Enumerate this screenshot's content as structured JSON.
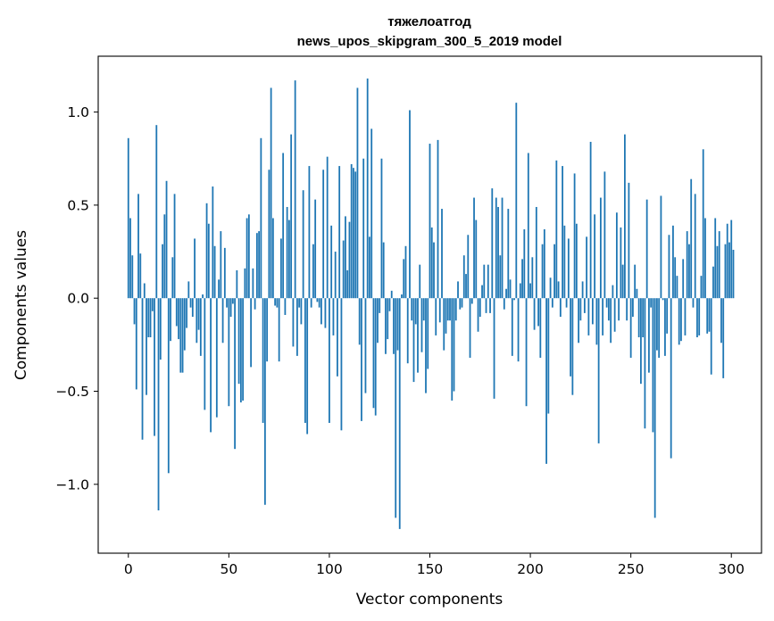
{
  "chart_data": {
    "type": "bar",
    "title_line1": "тяжелоатгод",
    "title_line2": "news_upos_skipgram_300_5_2019 model",
    "xlabel": "Vector components",
    "ylabel": "Components values",
    "xlim": [
      -15,
      315
    ],
    "ylim": [
      -1.37,
      1.3
    ],
    "x_ticks": [
      0,
      50,
      100,
      150,
      200,
      250,
      300
    ],
    "x_tick_labels": [
      "0",
      "50",
      "100",
      "150",
      "200",
      "250",
      "300"
    ],
    "y_ticks": [
      -1.0,
      -0.5,
      0.0,
      0.5,
      1.0
    ],
    "y_tick_labels": [
      "−1.0",
      "−0.5",
      "0.0",
      "0.5",
      "1.0"
    ],
    "bar_color": "#1f77b4",
    "grid": false,
    "values": [
      0.86,
      0.43,
      0.23,
      -0.14,
      -0.49,
      0.56,
      0.24,
      -0.76,
      0.08,
      -0.52,
      -0.21,
      -0.21,
      -0.07,
      -0.74,
      0.93,
      -1.14,
      -0.33,
      0.29,
      0.45,
      0.63,
      -0.94,
      -0.23,
      0.22,
      0.56,
      -0.15,
      -0.22,
      -0.4,
      -0.4,
      -0.28,
      -0.16,
      0.09,
      -0.05,
      -0.1,
      0.32,
      -0.24,
      -0.17,
      -0.31,
      0.02,
      -0.6,
      0.51,
      0.4,
      -0.72,
      0.6,
      0.28,
      -0.64,
      0.1,
      0.36,
      -0.24,
      0.27,
      -0.05,
      -0.58,
      -0.1,
      -0.03,
      -0.81,
      0.15,
      -0.46,
      -0.56,
      -0.55,
      0.16,
      0.43,
      0.45,
      -0.37,
      0.16,
      -0.06,
      0.35,
      0.36,
      0.86,
      -0.67,
      -1.11,
      -0.34,
      0.69,
      1.13,
      0.43,
      -0.04,
      -0.05,
      -0.34,
      0.32,
      0.78,
      -0.09,
      0.49,
      0.42,
      0.88,
      -0.26,
      1.17,
      -0.31,
      -0.05,
      -0.14,
      0.58,
      -0.67,
      -0.73,
      0.71,
      -0.05,
      0.29,
      0.53,
      -0.02,
      -0.05,
      -0.14,
      0.69,
      -0.16,
      0.76,
      -0.67,
      0.39,
      -0.2,
      0.25,
      -0.42,
      0.71,
      -0.71,
      0.31,
      0.44,
      0.15,
      0.41,
      0.72,
      0.7,
      0.68,
      1.13,
      -0.25,
      -0.66,
      0.75,
      -0.51,
      1.18,
      0.33,
      0.91,
      -0.59,
      -0.63,
      -0.24,
      -0.08,
      0.75,
      0.3,
      -0.3,
      -0.22,
      -0.07,
      0.04,
      -0.3,
      -1.18,
      -0.28,
      -1.24,
      0.02,
      0.21,
      0.28,
      -0.35,
      1.01,
      -0.12,
      -0.45,
      -0.14,
      -0.4,
      0.18,
      -0.29,
      -0.12,
      -0.51,
      -0.38,
      0.83,
      0.38,
      0.3,
      -0.2,
      0.85,
      -0.13,
      0.48,
      -0.28,
      -0.19,
      -0.12,
      -0.12,
      -0.55,
      -0.5,
      -0.12,
      0.09,
      -0.06,
      -0.05,
      0.23,
      0.13,
      0.34,
      -0.32,
      -0.03,
      0.54,
      0.42,
      -0.18,
      -0.1,
      0.07,
      0.18,
      -0.08,
      0.18,
      -0.08,
      0.59,
      -0.54,
      0.54,
      0.49,
      0.23,
      0.54,
      -0.06,
      0.05,
      0.48,
      0.1,
      -0.31,
      -0.01,
      1.05,
      -0.34,
      0.08,
      0.21,
      0.37,
      -0.58,
      0.78,
      0.08,
      0.22,
      -0.17,
      0.49,
      -0.15,
      -0.32,
      0.29,
      0.37,
      -0.89,
      -0.62,
      0.11,
      -0.05,
      0.29,
      0.74,
      0.09,
      -0.1,
      0.71,
      0.39,
      -0.05,
      0.32,
      -0.42,
      -0.52,
      0.67,
      0.4,
      -0.24,
      -0.12,
      0.09,
      -0.08,
      0.33,
      -0.2,
      0.84,
      -0.14,
      0.45,
      -0.25,
      -0.78,
      0.54,
      -0.2,
      0.68,
      -0.05,
      -0.12,
      -0.24,
      0.07,
      -0.18,
      0.46,
      -0.12,
      0.38,
      0.18,
      0.88,
      -0.12,
      0.62,
      -0.32,
      -0.1,
      0.18,
      0.05,
      -0.21,
      -0.46,
      -0.21,
      -0.7,
      0.53,
      -0.4,
      -0.05,
      -0.72,
      -1.18,
      -0.28,
      -0.32,
      0.55,
      -0.01,
      -0.31,
      -0.19,
      0.34,
      -0.86,
      0.39,
      0.22,
      0.12,
      -0.25,
      -0.23,
      0.21,
      -0.2,
      0.36,
      0.29,
      0.64,
      -0.05,
      0.56,
      -0.21,
      -0.2,
      0.12,
      0.8,
      0.43,
      -0.19,
      -0.18,
      -0.41,
      0.17,
      0.43,
      0.28,
      0.36,
      -0.24,
      -0.43,
      0.29,
      0.4,
      0.3,
      0.42,
      0.26
    ]
  }
}
